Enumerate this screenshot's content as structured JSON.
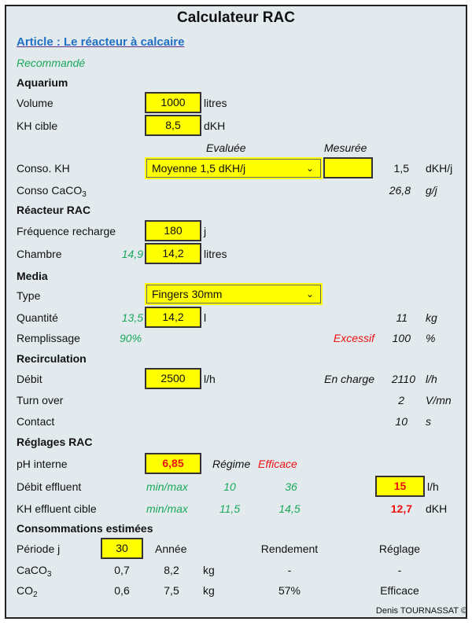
{
  "title": "Calculateur RAC",
  "article_link": "Article : Le réacteur à calcaire",
  "recommended_label": "Recommandé",
  "aquarium": {
    "heading": "Aquarium",
    "volume_label": "Volume",
    "volume_value": "1000",
    "volume_unit": "litres",
    "kh_label": "KH cible",
    "kh_value": "8,5",
    "kh_unit": "dKH"
  },
  "conso": {
    "evaluated_header": "Evaluée",
    "measured_header": "Mesurée",
    "kh_label": "Conso. KH",
    "kh_select": "Moyenne 1,5 dKH/j",
    "kh_measured": "",
    "kh_result": "1,5",
    "kh_unit": "dKH/j",
    "caco3_label": "Conso CaCO",
    "caco3_sub": "3",
    "caco3_value": "26,8",
    "caco3_unit": "g/j"
  },
  "reactor": {
    "heading": "Réacteur RAC",
    "freq_label": "Fréquence recharge",
    "freq_value": "180",
    "freq_unit": "j",
    "chamber_label": "Chambre",
    "chamber_recommended": "14,9",
    "chamber_value": "14,2",
    "chamber_unit": "litres"
  },
  "media": {
    "heading": "Media",
    "type_label": "Type",
    "type_select": "Fingers 30mm",
    "qty_label": "Quantité",
    "qty_recommended": "13,5",
    "qty_value": "14,2",
    "qty_unit": "l",
    "qty_mass": "11",
    "qty_mass_unit": "kg",
    "fill_label": "Remplissage",
    "fill_recommended": "90%",
    "fill_status": "Excessif",
    "fill_value": "100",
    "fill_unit": "%"
  },
  "recirc": {
    "heading": "Recirculation",
    "flow_label": "Débit",
    "flow_value": "2500",
    "flow_unit": "l/h",
    "load_label": "En charge",
    "load_value": "2110",
    "load_unit": "l/h",
    "turnover_label": "Turn over",
    "turnover_value": "2",
    "turnover_unit": "V/mn",
    "contact_label": "Contact",
    "contact_value": "10",
    "contact_unit": "s"
  },
  "settings": {
    "heading": "Réglages RAC",
    "ph_label": "pH interne",
    "ph_value": "6,85",
    "regime_label": "Régime",
    "regime_value": "Efficace",
    "effluent_label": "Débit effluent",
    "minmax": "min/max",
    "effluent_min": "10",
    "effluent_max": "36",
    "effluent_value": "15",
    "effluent_unit": "l/h",
    "kh_eff_label": "KH effluent cible",
    "kh_eff_min": "11,5",
    "kh_eff_max": "14,5",
    "kh_eff_value": "12,7",
    "kh_eff_unit": "dKH"
  },
  "estimates": {
    "heading": "Consommations estimées",
    "period_label": "Période j",
    "period_value": "30",
    "year_header": "Année",
    "yield_header": "Rendement",
    "setting_header": "Réglage",
    "rows": [
      {
        "name": "CaCO",
        "sub": "3",
        "period": "0,7",
        "year": "8,2",
        "unit": "kg",
        "yield": "-",
        "setting": "-"
      },
      {
        "name": "CO",
        "sub": "2",
        "period": "0,6",
        "year": "7,5",
        "unit": "kg",
        "yield": "57%",
        "setting": "Efficace"
      }
    ]
  },
  "footer": "Denis TOURNASSAT ©",
  "colors": {
    "input_bg": "#ffff00",
    "recommended": "#1aa85a",
    "alert": "#ee1111",
    "link": "#1f6fc4",
    "background": "#e3eaee"
  }
}
